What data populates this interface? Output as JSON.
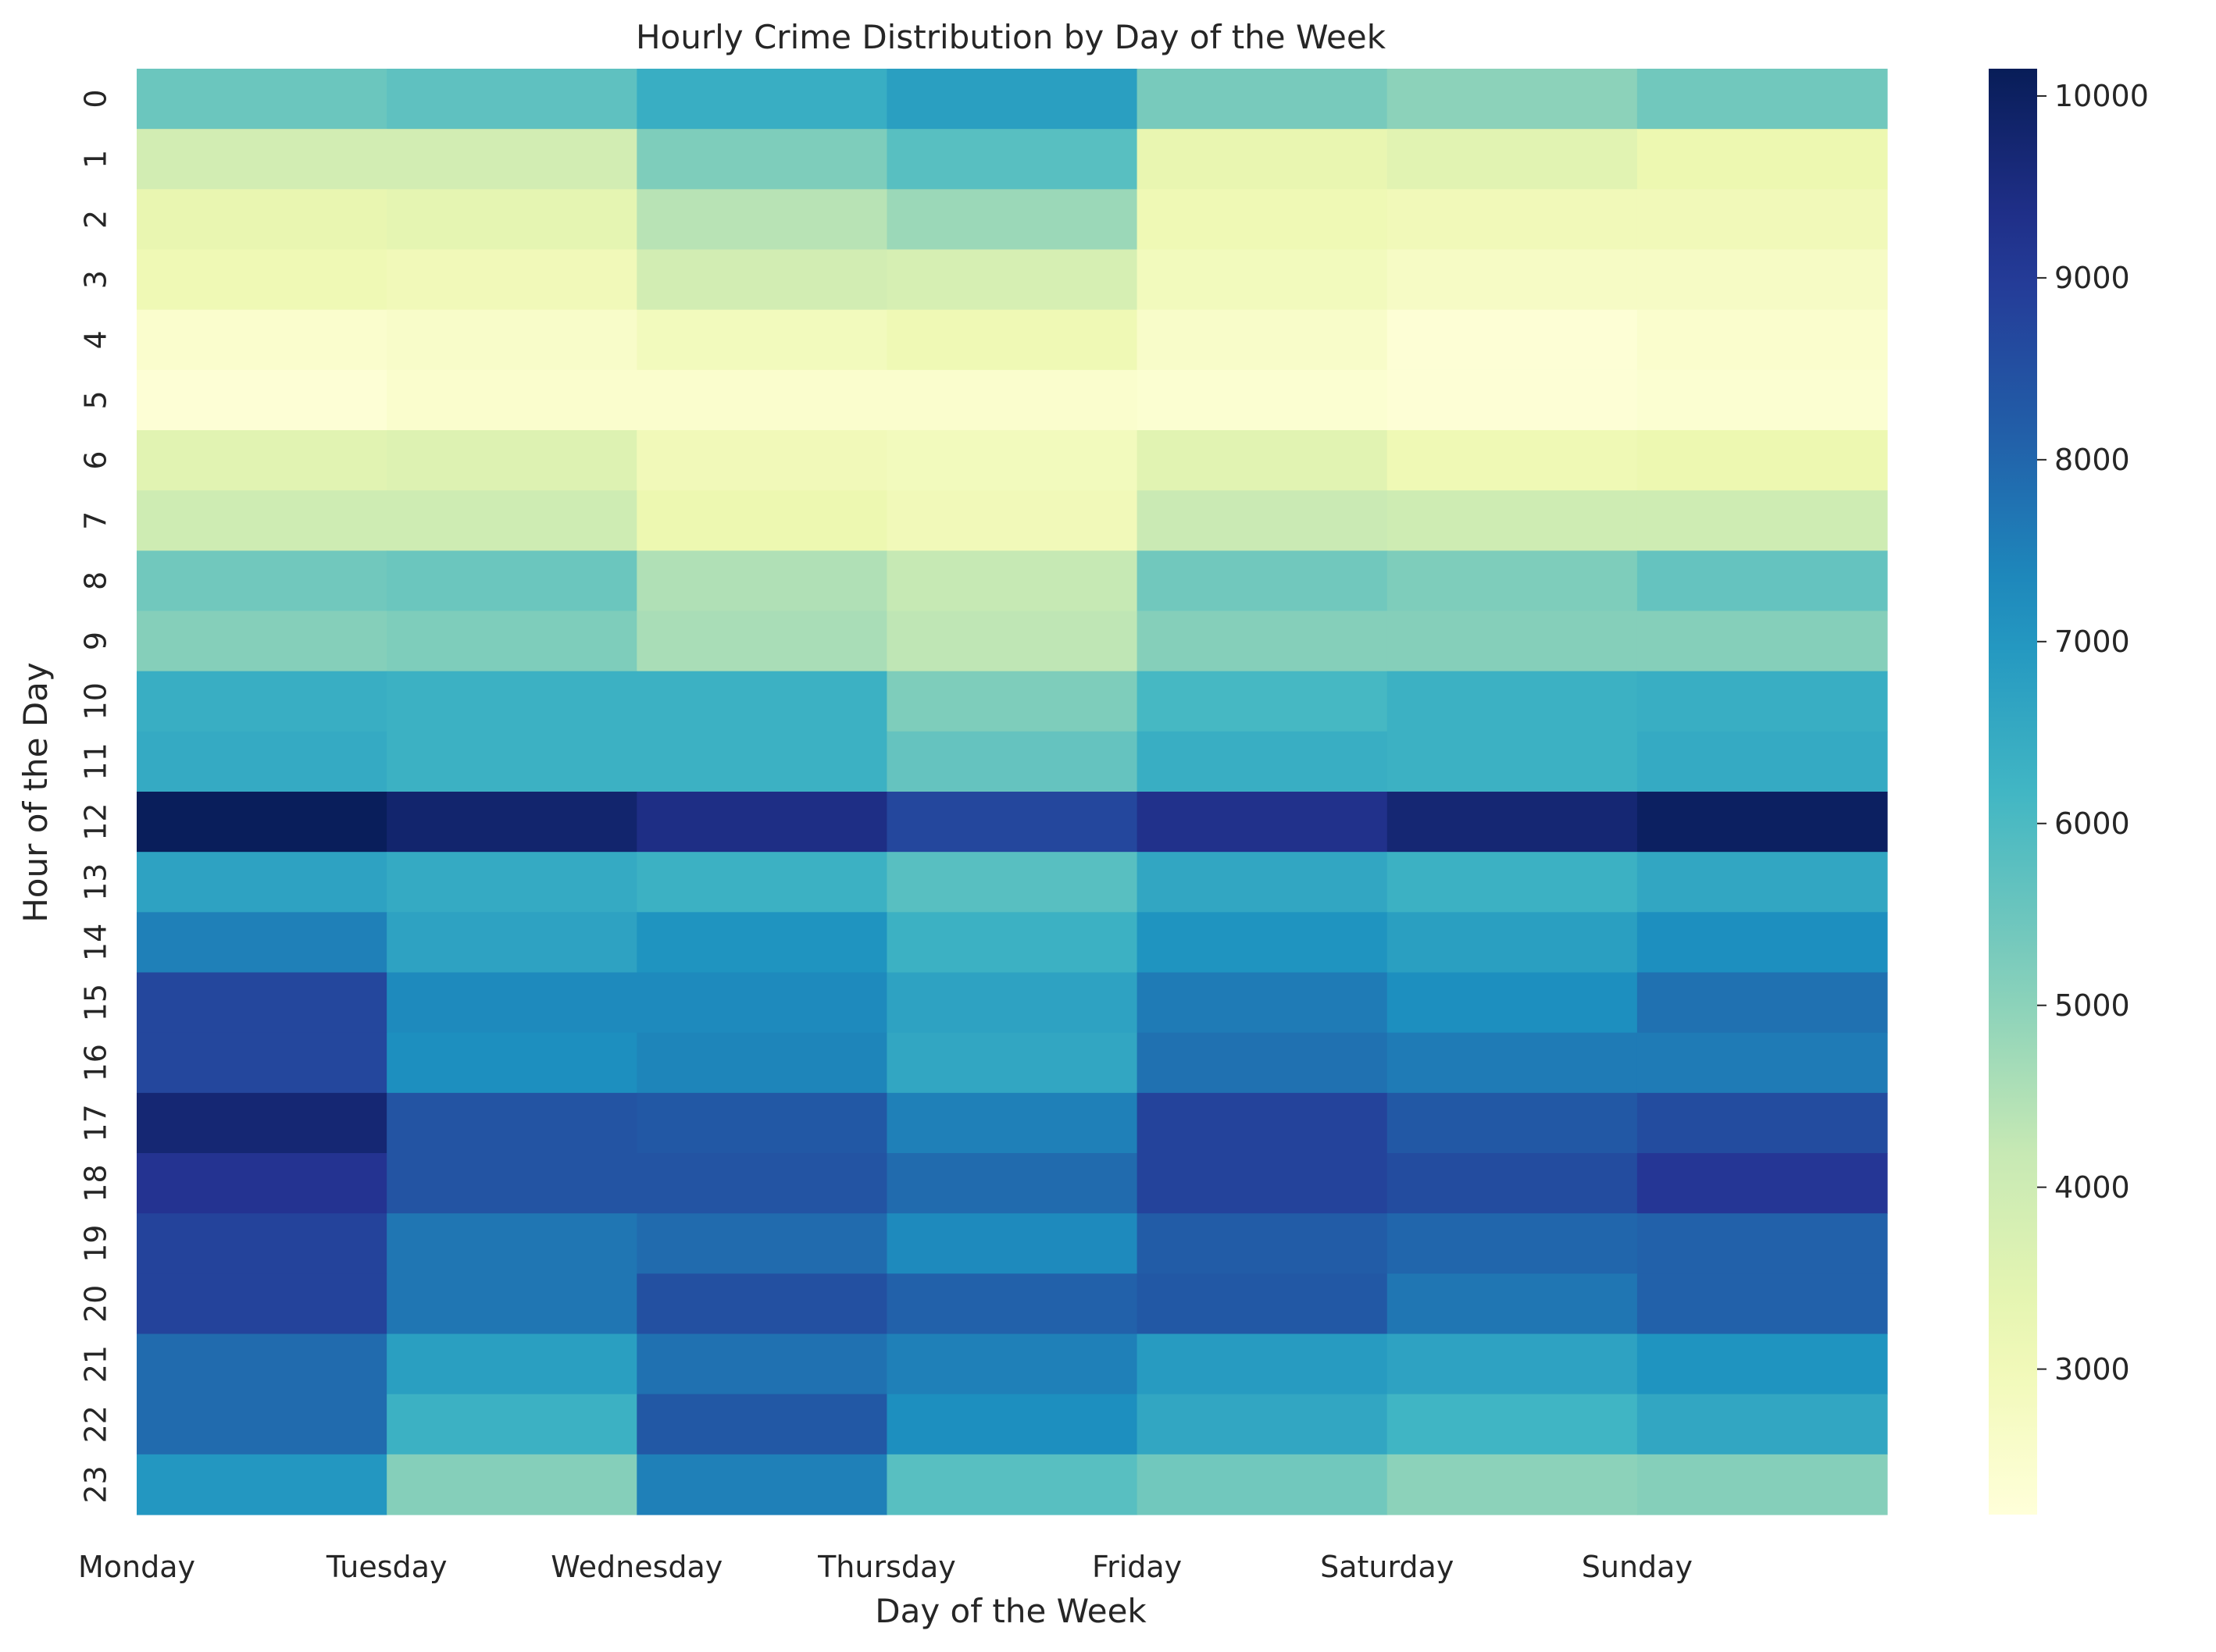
{
  "chart_data": {
    "type": "heatmap",
    "title": "Hourly Crime Distribution by Day of the Week",
    "xlabel": "Day of the Week",
    "ylabel": "Hour of the Day",
    "x": [
      "Monday",
      "Tuesday",
      "Wednesday",
      "Thursday",
      "Friday",
      "Saturday",
      "Sunday"
    ],
    "y": [
      "0",
      "1",
      "2",
      "3",
      "4",
      "5",
      "6",
      "7",
      "8",
      "9",
      "10",
      "11",
      "12",
      "13",
      "14",
      "15",
      "16",
      "17",
      "18",
      "19",
      "20",
      "21",
      "22",
      "23"
    ],
    "values": [
      [
        5500,
        5700,
        6400,
        6800,
        5300,
        5000,
        5400
      ],
      [
        3900,
        3900,
        5200,
        5800,
        3300,
        3500,
        3200
      ],
      [
        3300,
        3400,
        4400,
        4800,
        3100,
        3000,
        3000
      ],
      [
        3100,
        3000,
        3900,
        3800,
        2900,
        2700,
        2700
      ],
      [
        2500,
        2600,
        2900,
        3100,
        2600,
        2300,
        2500
      ],
      [
        2300,
        2500,
        2500,
        2500,
        2400,
        2300,
        2400
      ],
      [
        3500,
        3600,
        3000,
        2900,
        3500,
        3100,
        3200
      ],
      [
        4000,
        4000,
        3200,
        3000,
        4100,
        4000,
        4000
      ],
      [
        5400,
        5500,
        4500,
        4200,
        5400,
        5200,
        5600
      ],
      [
        5100,
        5200,
        4600,
        4300,
        5100,
        5100,
        5100
      ],
      [
        6400,
        6300,
        6300,
        5200,
        6100,
        6300,
        6400
      ],
      [
        6500,
        6300,
        6300,
        5600,
        6400,
        6300,
        6500
      ],
      [
        10100,
        9800,
        9400,
        8700,
        9300,
        9700,
        10000
      ],
      [
        6700,
        6500,
        6300,
        5800,
        6600,
        6300,
        6600
      ],
      [
        7500,
        6700,
        7100,
        6300,
        7100,
        6800,
        7200
      ],
      [
        8700,
        7300,
        7300,
        6700,
        7600,
        7200,
        7800
      ],
      [
        8700,
        7200,
        7400,
        6600,
        7800,
        7600,
        7600
      ],
      [
        9700,
        8400,
        8300,
        7500,
        8800,
        8300,
        8600
      ],
      [
        9200,
        8400,
        8400,
        7900,
        8800,
        8600,
        9100
      ],
      [
        8800,
        7700,
        7900,
        7300,
        8200,
        8000,
        8100
      ],
      [
        8800,
        7700,
        8500,
        8100,
        8300,
        7700,
        8100
      ],
      [
        7900,
        6800,
        7800,
        7500,
        6900,
        6700,
        7100
      ],
      [
        7900,
        6300,
        8300,
        7200,
        6600,
        6200,
        6600
      ],
      [
        7000,
        5100,
        7500,
        5800,
        5400,
        5000,
        5100
      ]
    ],
    "vmin": 2200,
    "vmax": 10150,
    "colorbar_ticks": [
      "3000",
      "4000",
      "5000",
      "6000",
      "7000",
      "8000",
      "9000",
      "10000"
    ],
    "colormap": "YlGnBu",
    "grid": false,
    "legend": "colorbar-right"
  }
}
